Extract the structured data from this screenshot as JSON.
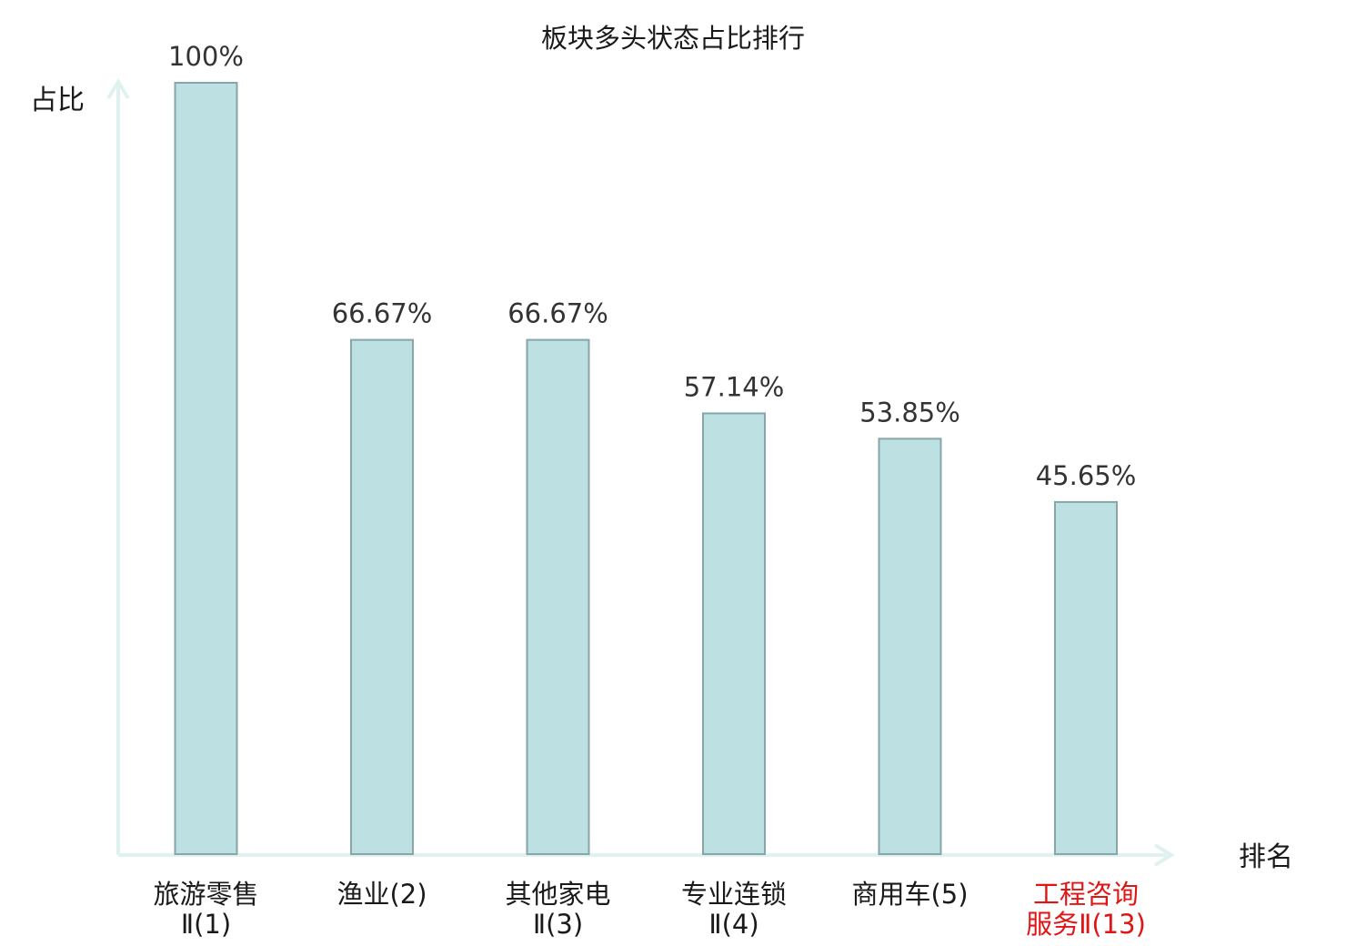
{
  "chart_data": {
    "type": "bar",
    "title": "板块多头状态占比排行",
    "ylabel": "占比",
    "xlabel": "排名",
    "ylim": [
      0,
      100
    ],
    "value_format": "percent",
    "grid": false,
    "categories": [
      {
        "lines": [
          "旅游零售",
          "Ⅱ(1)"
        ],
        "highlight": false
      },
      {
        "lines": [
          "渔业(2)"
        ],
        "highlight": false
      },
      {
        "lines": [
          "其他家电",
          "Ⅱ(3)"
        ],
        "highlight": false
      },
      {
        "lines": [
          "专业连锁",
          "Ⅱ(4)"
        ],
        "highlight": false
      },
      {
        "lines": [
          "商用车(5)"
        ],
        "highlight": false
      },
      {
        "lines": [
          "工程咨询",
          "服务Ⅱ(13)"
        ],
        "highlight": true
      }
    ],
    "values": [
      100,
      66.67,
      66.67,
      57.14,
      53.85,
      45.65
    ],
    "value_labels": [
      "100%",
      "66.67%",
      "66.67%",
      "57.14%",
      "53.85%",
      "45.65%"
    ]
  },
  "colors": {
    "bar_fill": "#bde0e2",
    "bar_stroke": "#86a6a9",
    "axis": "#dff2ef",
    "highlight_label": "#e01515",
    "text": "#1a1a1a",
    "value_text": "#333333"
  }
}
